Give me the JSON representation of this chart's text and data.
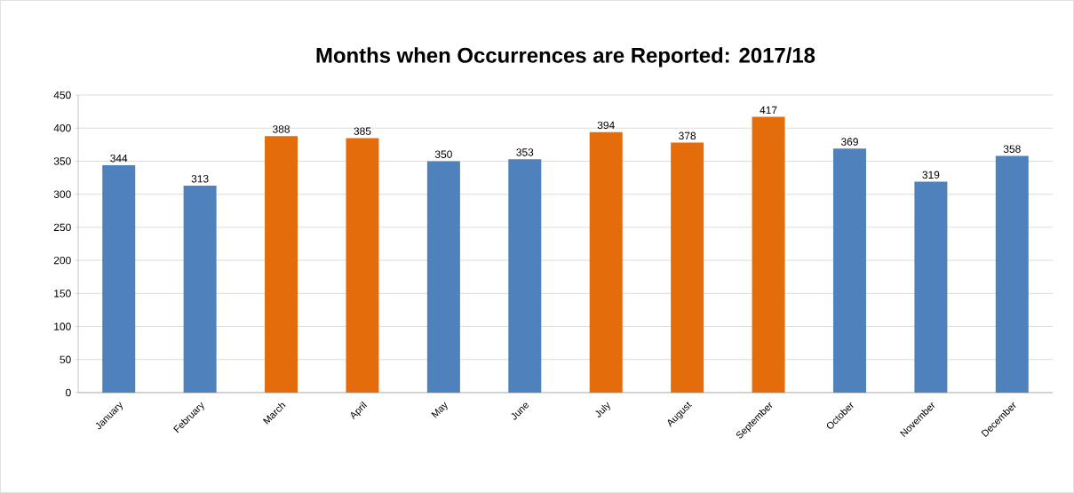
{
  "chart_data": {
    "type": "bar",
    "title": "Months when Occurrences are Reported: 2017/18",
    "categories": [
      "January",
      "February",
      "March",
      "April",
      "May",
      "June",
      "July",
      "August",
      "September",
      "October",
      "November",
      "December"
    ],
    "values": [
      344,
      313,
      388,
      385,
      350,
      353,
      394,
      378,
      417,
      369,
      319,
      358
    ],
    "colors": [
      "#4f81bd",
      "#4f81bd",
      "#e46c0a",
      "#e46c0a",
      "#4f81bd",
      "#4f81bd",
      "#e46c0a",
      "#e46c0a",
      "#e46c0a",
      "#4f81bd",
      "#4f81bd",
      "#4f81bd"
    ],
    "ylim": [
      0,
      450
    ],
    "yticks": [
      0,
      50,
      100,
      150,
      200,
      250,
      300,
      350,
      400,
      450
    ],
    "grid": "y",
    "data_labels": true
  }
}
